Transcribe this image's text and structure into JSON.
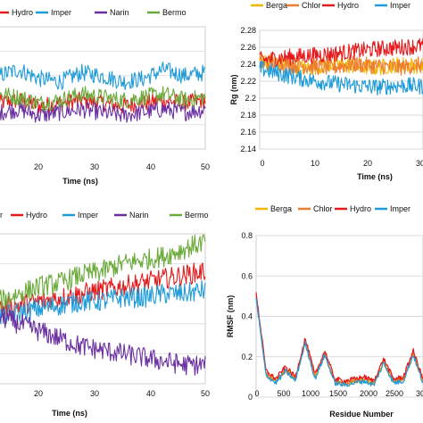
{
  "chart_data": [
    {
      "type": "line",
      "panel": "top-left",
      "xlabel": "Time (ns)",
      "ylabel": "",
      "xlim": [
        0,
        50
      ],
      "x_ticks": [
        "20",
        "30",
        "40",
        "50"
      ],
      "y_ticks": [],
      "legend": [
        "Hydro",
        "Imper",
        "Narin",
        "Bermo"
      ],
      "series": [
        {
          "name": "Hydro",
          "color": "#e41a1c",
          "values": [
            0.55,
            0.56,
            0.54,
            0.55,
            0.56,
            0.55,
            0.54,
            0.55,
            0.56,
            0.55,
            0.56
          ]
        },
        {
          "name": "Imper",
          "color": "#1f9bd8",
          "values": [
            0.64,
            0.66,
            0.63,
            0.62,
            0.65,
            0.64,
            0.62,
            0.63,
            0.66,
            0.64,
            0.65
          ]
        },
        {
          "name": "Narin",
          "color": "#6a2fa0",
          "values": [
            0.52,
            0.53,
            0.51,
            0.52,
            0.53,
            0.52,
            0.51,
            0.52,
            0.53,
            0.52,
            0.53
          ]
        },
        {
          "name": "Bermo",
          "color": "#6aaa3a",
          "values": [
            0.58,
            0.57,
            0.55,
            0.56,
            0.58,
            0.57,
            0.56,
            0.57,
            0.58,
            0.56,
            0.57
          ]
        }
      ]
    },
    {
      "type": "line",
      "panel": "top-right",
      "xlabel": "Time (ns)",
      "ylabel": "Rg (nm)",
      "xlim": [
        0,
        30
      ],
      "ylim": [
        2.14,
        2.28
      ],
      "x_ticks": [
        "0",
        "10",
        "20",
        "30"
      ],
      "y_ticks": [
        "2.14",
        "2.16",
        "2.18",
        "2.2",
        "2.22",
        "2.24",
        "2.26",
        "2.28"
      ],
      "legend": [
        "Berga",
        "Chlor",
        "Hydro",
        "Imper"
      ],
      "series": [
        {
          "name": "Berga",
          "color": "#f2b705",
          "values": [
            2.245,
            2.24,
            2.235,
            2.24,
            2.238,
            2.236,
            2.24,
            2.238
          ]
        },
        {
          "name": "Chlor",
          "color": "#ed7d31",
          "values": [
            2.242,
            2.24,
            2.238,
            2.236,
            2.24,
            2.238,
            2.236,
            2.24
          ]
        },
        {
          "name": "Hydro",
          "color": "#e41a1c",
          "values": [
            2.245,
            2.248,
            2.25,
            2.252,
            2.255,
            2.258,
            2.26,
            2.262
          ]
        },
        {
          "name": "Imper",
          "color": "#1f9bd8",
          "values": [
            2.235,
            2.228,
            2.222,
            2.218,
            2.215,
            2.213,
            2.215,
            2.214
          ]
        }
      ]
    },
    {
      "type": "line",
      "panel": "bottom-left",
      "xlabel": "Time (ns)",
      "ylabel": "",
      "xlim": [
        0,
        50
      ],
      "x_ticks": [
        "20",
        "30",
        "40",
        "50"
      ],
      "y_ticks": [],
      "legend": [
        "Hydro",
        "Imper",
        "Narin",
        "Bermo"
      ],
      "legend_fragment": "r",
      "series": [
        {
          "name": "Hydro",
          "color": "#e41a1c",
          "values": [
            0.6,
            0.61,
            0.62,
            0.63,
            0.64,
            0.65,
            0.66,
            0.67,
            0.68,
            0.69,
            0.7
          ]
        },
        {
          "name": "Imper",
          "color": "#1f9bd8",
          "values": [
            0.58,
            0.59,
            0.6,
            0.61,
            0.62,
            0.62,
            0.63,
            0.63,
            0.64,
            0.64,
            0.65
          ]
        },
        {
          "name": "Narin",
          "color": "#6a2fa0",
          "values": [
            0.58,
            0.56,
            0.54,
            0.52,
            0.5,
            0.49,
            0.48,
            0.47,
            0.46,
            0.45,
            0.45
          ]
        },
        {
          "name": "Bermo",
          "color": "#6aaa3a",
          "values": [
            0.62,
            0.64,
            0.66,
            0.67,
            0.69,
            0.7,
            0.72,
            0.73,
            0.74,
            0.76,
            0.78
          ]
        }
      ]
    },
    {
      "type": "line",
      "panel": "bottom-right",
      "xlabel": "Residue Number",
      "ylabel": "RMSF (nm)",
      "xlim": [
        0,
        3000
      ],
      "ylim": [
        0,
        0.8
      ],
      "x_ticks": [
        "0",
        "500",
        "1000",
        "1500",
        "2000",
        "2500",
        "30"
      ],
      "y_ticks": [
        "0",
        "0.2",
        "0.4",
        "0.6",
        "0.8"
      ],
      "legend": [
        "Berga",
        "Chlor",
        "Hydro",
        "Imper"
      ],
      "series": [
        {
          "name": "Berga",
          "color": "#f2b705",
          "values": [
            0.5,
            0.12,
            0.08,
            0.14,
            0.09,
            0.28,
            0.1,
            0.22,
            0.08,
            0.07,
            0.08,
            0.09,
            0.07,
            0.18,
            0.08,
            0.09,
            0.22,
            0.08
          ]
        },
        {
          "name": "Chlor",
          "color": "#ed7d31",
          "values": [
            0.5,
            0.11,
            0.08,
            0.13,
            0.09,
            0.27,
            0.1,
            0.21,
            0.08,
            0.07,
            0.08,
            0.09,
            0.07,
            0.17,
            0.08,
            0.09,
            0.21,
            0.08
          ]
        },
        {
          "name": "Hydro",
          "color": "#e41a1c",
          "values": [
            0.52,
            0.13,
            0.09,
            0.15,
            0.1,
            0.29,
            0.11,
            0.23,
            0.09,
            0.08,
            0.09,
            0.1,
            0.08,
            0.19,
            0.09,
            0.1,
            0.23,
            0.09
          ]
        },
        {
          "name": "Imper",
          "color": "#1f9bd8",
          "values": [
            0.49,
            0.11,
            0.07,
            0.13,
            0.08,
            0.27,
            0.09,
            0.21,
            0.07,
            0.06,
            0.07,
            0.08,
            0.06,
            0.17,
            0.07,
            0.08,
            0.21,
            0.07
          ]
        }
      ]
    }
  ]
}
